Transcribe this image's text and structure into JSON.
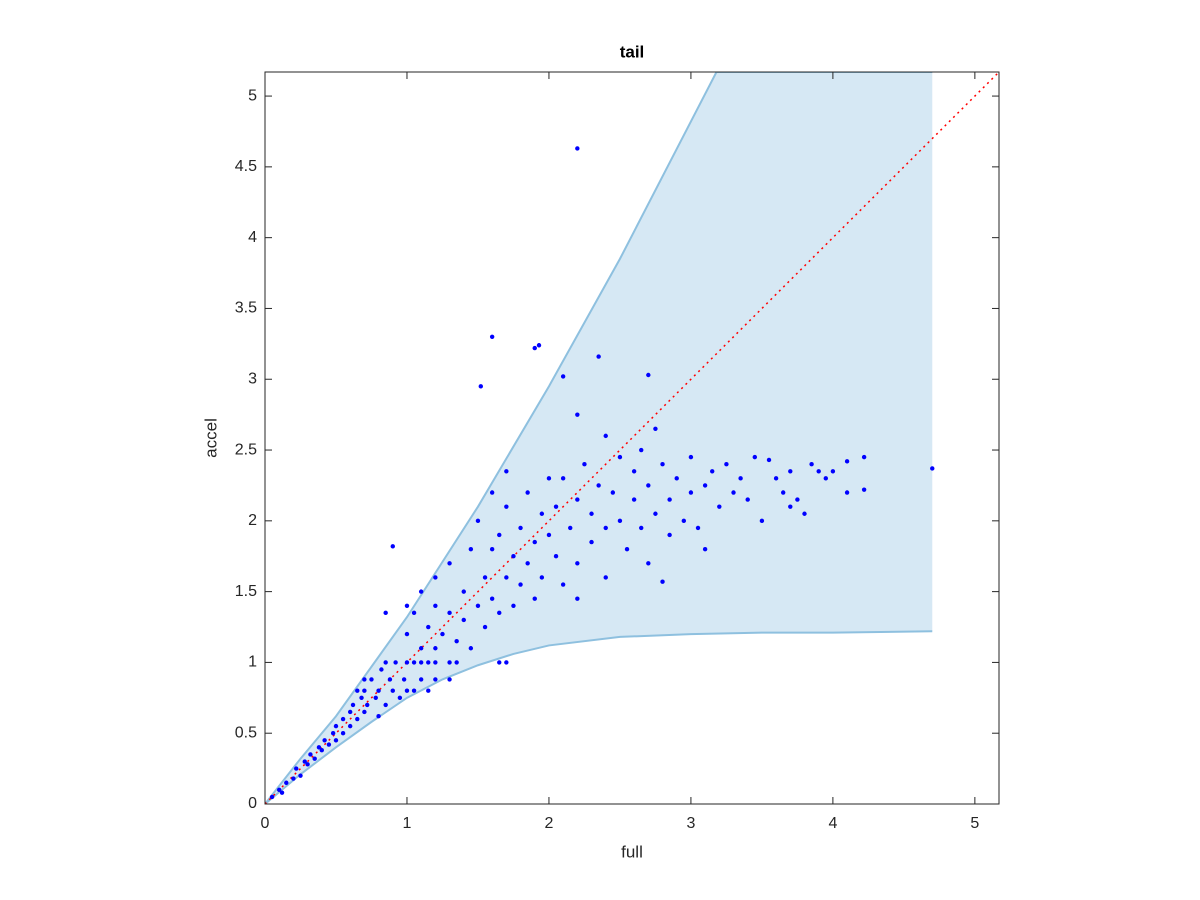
{
  "chart_data": {
    "type": "scatter",
    "title": "tail",
    "xlabel": "full",
    "ylabel": "accel",
    "color": "#0000ff",
    "x": [
      2.2,
      1.6,
      1.9,
      1.93,
      1.52,
      2.35,
      2.1,
      2.7,
      2.2,
      4.7,
      4.22,
      4.22,
      4.1,
      4.1,
      3.9,
      3.5,
      3.55,
      3.8,
      2.8,
      0.9,
      1.65,
      1.7,
      0.05,
      0.1,
      0.12,
      0.15,
      0.2,
      0.22,
      0.25,
      0.28,
      0.3,
      0.32,
      0.35,
      0.38,
      0.4,
      0.42,
      0.45,
      0.48,
      0.5,
      0.5,
      0.55,
      0.55,
      0.6,
      0.6,
      0.62,
      0.65,
      0.68,
      0.7,
      0.7,
      0.72,
      0.75,
      0.78,
      0.8,
      0.8,
      0.82,
      0.85,
      0.88,
      0.9,
      0.92,
      0.95,
      0.98,
      1.0,
      1.0,
      0.85,
      1.05,
      1.1,
      1.15,
      1.2,
      1.3,
      1.35,
      0.7,
      1.1,
      1.2,
      1.3,
      0.65,
      1.05,
      1.15,
      1.0,
      1.05,
      1.1,
      1.1,
      1.15,
      1.2,
      1.2,
      1.25,
      1.3,
      1.3,
      1.35,
      1.4,
      1.4,
      1.45,
      1.45,
      1.5,
      1.5,
      1.0,
      0.85,
      1.2,
      1.55,
      1.55,
      1.6,
      1.6,
      1.65,
      1.65,
      1.7,
      1.7,
      1.75,
      1.75,
      1.8,
      1.8,
      1.85,
      1.85,
      1.9,
      1.9,
      1.95,
      1.95,
      2.0,
      2.0,
      1.6,
      1.7,
      2.05,
      2.05,
      2.1,
      2.1,
      2.15,
      2.2,
      2.2,
      2.25,
      2.3,
      2.3,
      2.35,
      2.4,
      2.4,
      2.45,
      2.5,
      2.5,
      2.2,
      2.4,
      2.55,
      2.6,
      2.6,
      2.65,
      2.7,
      2.7,
      2.75,
      2.8,
      2.85,
      2.85,
      2.9,
      2.95,
      3.0,
      3.0,
      2.75,
      2.65,
      3.05,
      3.1,
      3.15,
      3.2,
      3.25,
      3.3,
      3.35,
      3.4,
      3.45,
      3.1,
      3.6,
      3.65,
      3.7,
      3.75,
      3.85,
      3.95,
      4.0,
      3.7
    ],
    "values": [
      4.63,
      3.3,
      3.22,
      3.24,
      2.95,
      3.16,
      3.02,
      3.03,
      2.75,
      2.37,
      2.45,
      2.22,
      2.42,
      2.2,
      2.35,
      2.0,
      2.43,
      2.05,
      1.57,
      1.82,
      1.0,
      1.0,
      0.05,
      0.1,
      0.08,
      0.15,
      0.18,
      0.25,
      0.2,
      0.3,
      0.28,
      0.35,
      0.32,
      0.4,
      0.38,
      0.45,
      0.42,
      0.5,
      0.45,
      0.55,
      0.5,
      0.6,
      0.55,
      0.65,
      0.7,
      0.6,
      0.75,
      0.65,
      0.8,
      0.7,
      0.88,
      0.75,
      0.62,
      0.8,
      0.95,
      0.7,
      0.88,
      0.8,
      1.0,
      0.75,
      0.88,
      1.0,
      0.8,
      1,
      1,
      1,
      1,
      1,
      1,
      1,
      0.88,
      0.88,
      0.88,
      0.88,
      0.8,
      0.8,
      0.8,
      1.2,
      1.35,
      1.1,
      1.5,
      1.25,
      1.4,
      1.6,
      1.2,
      1.35,
      1.7,
      1.15,
      1.5,
      1.3,
      1.8,
      1.1,
      1.4,
      2.0,
      1.4,
      1.35,
      1.1,
      1.6,
      1.25,
      1.8,
      1.45,
      1.9,
      1.35,
      1.6,
      2.1,
      1.75,
      1.4,
      1.95,
      1.55,
      2.2,
      1.7,
      1.85,
      1.45,
      2.05,
      1.6,
      1.9,
      2.3,
      2.2,
      2.35,
      1.75,
      2.1,
      2.3,
      1.55,
      1.95,
      2.15,
      1.7,
      2.4,
      1.85,
      2.05,
      2.25,
      1.95,
      1.6,
      2.2,
      2.0,
      2.45,
      1.45,
      2.6,
      1.8,
      2.15,
      2.35,
      1.95,
      2.25,
      1.7,
      2.05,
      2.4,
      2.15,
      1.9,
      2.3,
      2.0,
      2.2,
      2.45,
      2.65,
      2.5,
      1.95,
      2.25,
      2.35,
      2.1,
      2.4,
      2.2,
      2.3,
      2.15,
      2.45,
      1.8,
      2.3,
      2.2,
      2.35,
      2.15,
      2.4,
      2.3,
      2.35,
      2.1
    ],
    "band": {
      "fill": "#d6e8f4",
      "edge": "#8ec0df",
      "upper": {
        "x": [
          0,
          0.25,
          0.5,
          1,
          1.5,
          2,
          2.5,
          3.18,
          4.7
        ],
        "y": [
          0,
          0.32,
          0.62,
          1.32,
          2.1,
          2.95,
          3.85,
          5.17,
          5.17
        ]
      },
      "lower": {
        "x": [
          0,
          0.25,
          0.5,
          0.75,
          1,
          1.25,
          1.5,
          1.75,
          2,
          2.5,
          3,
          3.5,
          4,
          4.7
        ],
        "y": [
          0,
          0.21,
          0.4,
          0.58,
          0.75,
          0.88,
          0.98,
          1.06,
          1.12,
          1.18,
          1.2,
          1.21,
          1.21,
          1.22
        ]
      }
    },
    "reference_line": {
      "x": [
        0,
        5.17
      ],
      "y": [
        0,
        5.17
      ],
      "color": "#ff0000"
    },
    "xlim": [
      0,
      5.17
    ],
    "ylim": [
      0,
      5.17
    ],
    "xticks": [
      0,
      1,
      2,
      3,
      4,
      5
    ],
    "yticks": [
      0,
      0.5,
      1,
      1.5,
      2,
      2.5,
      3,
      3.5,
      4,
      4.5,
      5
    ]
  }
}
